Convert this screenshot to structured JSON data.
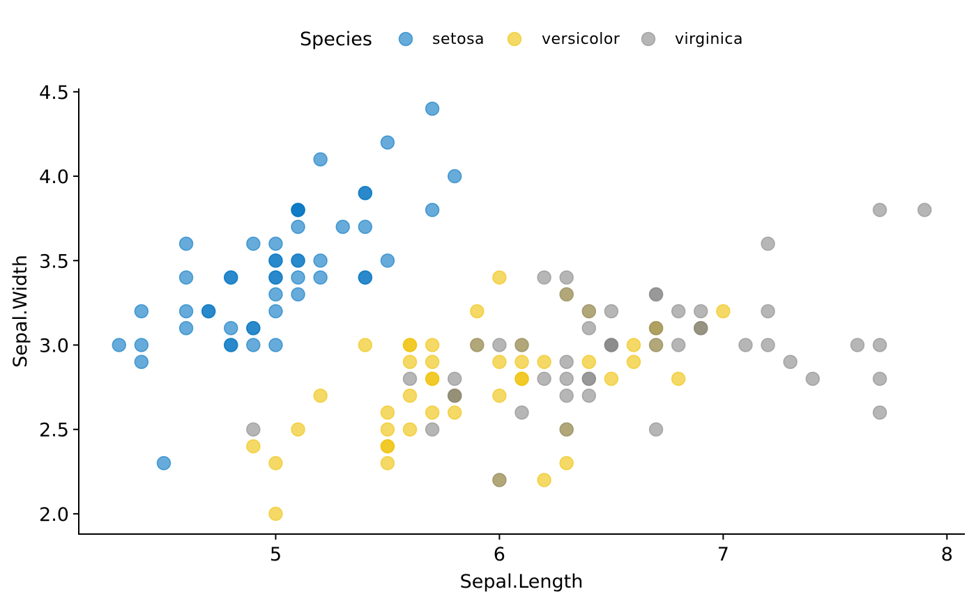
{
  "chart_data": {
    "type": "scatter",
    "xlabel": "Sepal.Length",
    "ylabel": "Sepal.Width",
    "xlim": [
      4.12,
      8.08
    ],
    "ylim": [
      1.88,
      4.52
    ],
    "x_ticks": [
      5,
      6,
      7,
      8
    ],
    "y_ticks": [
      2.0,
      2.5,
      3.0,
      3.5,
      4.0,
      4.5
    ],
    "x_tick_labels": [
      "5",
      "6",
      "7",
      "8"
    ],
    "y_tick_labels": [
      "2.0",
      "2.5",
      "3.0",
      "3.5",
      "4.0",
      "4.5"
    ],
    "grid": false,
    "legend": {
      "title": "Species",
      "position": "top"
    },
    "series": [
      {
        "name": "setosa",
        "color": "#0073C2",
        "points": [
          [
            5.1,
            3.5
          ],
          [
            4.9,
            3.0
          ],
          [
            4.7,
            3.2
          ],
          [
            4.6,
            3.1
          ],
          [
            5.0,
            3.6
          ],
          [
            5.4,
            3.9
          ],
          [
            4.6,
            3.4
          ],
          [
            5.0,
            3.4
          ],
          [
            4.4,
            2.9
          ],
          [
            4.9,
            3.1
          ],
          [
            5.4,
            3.7
          ],
          [
            4.8,
            3.4
          ],
          [
            4.8,
            3.0
          ],
          [
            4.3,
            3.0
          ],
          [
            5.8,
            4.0
          ],
          [
            5.7,
            4.4
          ],
          [
            5.4,
            3.9
          ],
          [
            5.1,
            3.5
          ],
          [
            5.7,
            3.8
          ],
          [
            5.1,
            3.8
          ],
          [
            5.4,
            3.4
          ],
          [
            5.1,
            3.7
          ],
          [
            4.6,
            3.6
          ],
          [
            5.1,
            3.3
          ],
          [
            4.8,
            3.4
          ],
          [
            5.0,
            3.0
          ],
          [
            5.0,
            3.4
          ],
          [
            5.2,
            3.5
          ],
          [
            5.2,
            3.4
          ],
          [
            4.7,
            3.2
          ],
          [
            4.8,
            3.1
          ],
          [
            5.4,
            3.4
          ],
          [
            5.2,
            4.1
          ],
          [
            5.5,
            4.2
          ],
          [
            4.9,
            3.1
          ],
          [
            5.0,
            3.2
          ],
          [
            5.5,
            3.5
          ],
          [
            4.9,
            3.6
          ],
          [
            4.4,
            3.0
          ],
          [
            5.1,
            3.4
          ],
          [
            5.0,
            3.5
          ],
          [
            4.5,
            2.3
          ],
          [
            4.4,
            3.2
          ],
          [
            5.0,
            3.5
          ],
          [
            5.1,
            3.8
          ],
          [
            4.8,
            3.0
          ],
          [
            5.1,
            3.8
          ],
          [
            4.6,
            3.2
          ],
          [
            5.3,
            3.7
          ],
          [
            5.0,
            3.3
          ]
        ]
      },
      {
        "name": "versicolor",
        "color": "#EFC000",
        "points": [
          [
            7.0,
            3.2
          ],
          [
            6.4,
            3.2
          ],
          [
            6.9,
            3.1
          ],
          [
            5.5,
            2.3
          ],
          [
            6.5,
            2.8
          ],
          [
            5.7,
            2.8
          ],
          [
            6.3,
            3.3
          ],
          [
            4.9,
            2.4
          ],
          [
            6.6,
            2.9
          ],
          [
            5.2,
            2.7
          ],
          [
            5.0,
            2.0
          ],
          [
            5.9,
            3.0
          ],
          [
            6.0,
            2.2
          ],
          [
            6.1,
            2.9
          ],
          [
            5.6,
            2.9
          ],
          [
            6.7,
            3.1
          ],
          [
            5.6,
            3.0
          ],
          [
            5.8,
            2.7
          ],
          [
            6.2,
            2.2
          ],
          [
            5.6,
            2.5
          ],
          [
            5.9,
            3.2
          ],
          [
            6.1,
            2.8
          ],
          [
            6.3,
            2.5
          ],
          [
            6.1,
            2.8
          ],
          [
            6.4,
            2.9
          ],
          [
            6.6,
            3.0
          ],
          [
            6.8,
            2.8
          ],
          [
            6.7,
            3.0
          ],
          [
            6.0,
            2.9
          ],
          [
            5.7,
            2.6
          ],
          [
            5.5,
            2.4
          ],
          [
            5.5,
            2.4
          ],
          [
            5.8,
            2.7
          ],
          [
            6.0,
            2.7
          ],
          [
            5.4,
            3.0
          ],
          [
            6.0,
            3.4
          ],
          [
            6.7,
            3.1
          ],
          [
            6.3,
            2.3
          ],
          [
            5.6,
            3.0
          ],
          [
            5.5,
            2.5
          ],
          [
            5.5,
            2.6
          ],
          [
            6.1,
            3.0
          ],
          [
            5.8,
            2.6
          ],
          [
            5.0,
            2.3
          ],
          [
            5.6,
            2.7
          ],
          [
            5.7,
            3.0
          ],
          [
            5.7,
            2.9
          ],
          [
            6.2,
            2.9
          ],
          [
            5.1,
            2.5
          ],
          [
            5.7,
            2.8
          ]
        ]
      },
      {
        "name": "virginica",
        "color": "#868686",
        "points": [
          [
            6.3,
            3.3
          ],
          [
            5.8,
            2.7
          ],
          [
            7.1,
            3.0
          ],
          [
            6.3,
            2.9
          ],
          [
            6.5,
            3.0
          ],
          [
            7.6,
            3.0
          ],
          [
            4.9,
            2.5
          ],
          [
            7.3,
            2.9
          ],
          [
            6.7,
            2.5
          ],
          [
            7.2,
            3.6
          ],
          [
            6.5,
            3.2
          ],
          [
            6.4,
            2.7
          ],
          [
            6.8,
            3.0
          ],
          [
            5.7,
            2.5
          ],
          [
            5.8,
            2.8
          ],
          [
            6.4,
            3.2
          ],
          [
            6.5,
            3.0
          ],
          [
            7.7,
            3.8
          ],
          [
            7.7,
            2.6
          ],
          [
            6.0,
            2.2
          ],
          [
            6.9,
            3.2
          ],
          [
            5.6,
            2.8
          ],
          [
            7.7,
            2.8
          ],
          [
            6.3,
            2.7
          ],
          [
            6.7,
            3.3
          ],
          [
            7.2,
            3.2
          ],
          [
            6.2,
            2.8
          ],
          [
            6.1,
            3.0
          ],
          [
            6.4,
            2.8
          ],
          [
            7.2,
            3.0
          ],
          [
            7.4,
            2.8
          ],
          [
            7.9,
            3.8
          ],
          [
            6.4,
            2.8
          ],
          [
            6.3,
            2.8
          ],
          [
            6.1,
            2.6
          ],
          [
            7.7,
            3.0
          ],
          [
            6.3,
            3.4
          ],
          [
            6.4,
            3.1
          ],
          [
            6.0,
            3.0
          ],
          [
            6.9,
            3.1
          ],
          [
            6.7,
            3.1
          ],
          [
            6.9,
            3.1
          ],
          [
            5.8,
            2.7
          ],
          [
            6.8,
            3.2
          ],
          [
            6.7,
            3.3
          ],
          [
            6.7,
            3.0
          ],
          [
            6.3,
            2.5
          ],
          [
            6.5,
            3.0
          ],
          [
            6.2,
            3.4
          ],
          [
            5.9,
            3.0
          ]
        ]
      }
    ]
  }
}
